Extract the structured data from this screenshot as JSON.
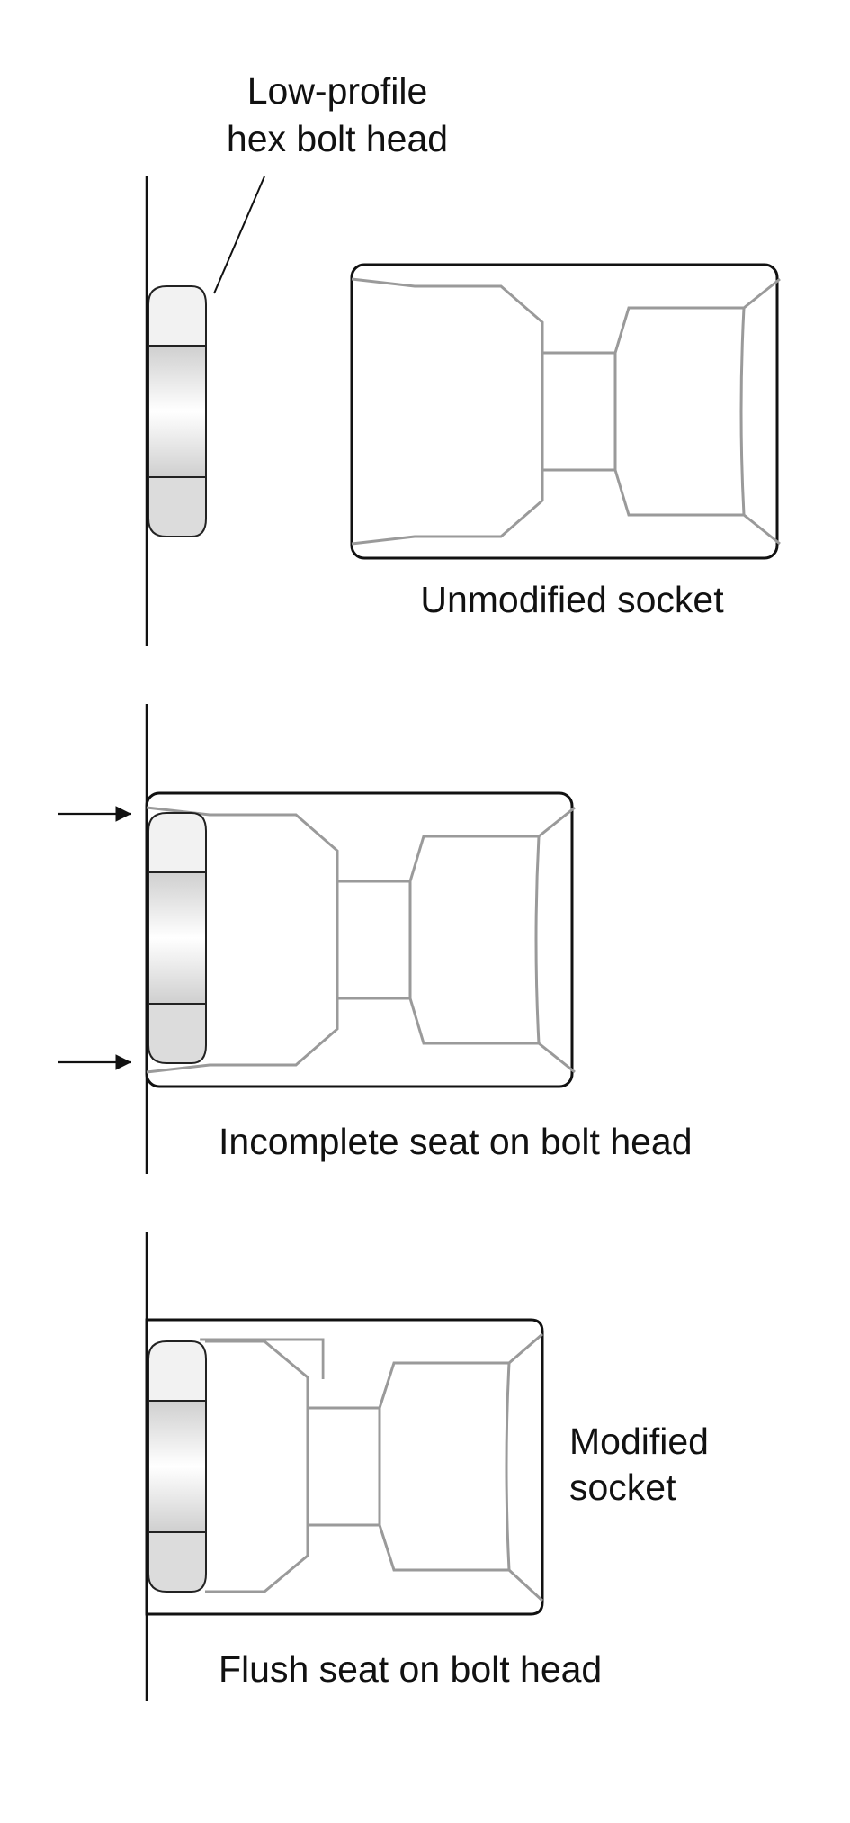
{
  "labels": {
    "bolt_head_line1": "Low-profile",
    "bolt_head_line2": "hex bolt head",
    "unmodified": "Unmodified socket",
    "incomplete": "Incomplete seat on bolt head",
    "modified_line1": "Modified",
    "modified_line2": "socket",
    "flush": "Flush seat on bolt head"
  },
  "colors": {
    "outline": "#111111",
    "socket_interior": "#9a9a9a",
    "bolt_light": "#f2f2f2",
    "bolt_gradient_edge": "#cfcfcf"
  }
}
